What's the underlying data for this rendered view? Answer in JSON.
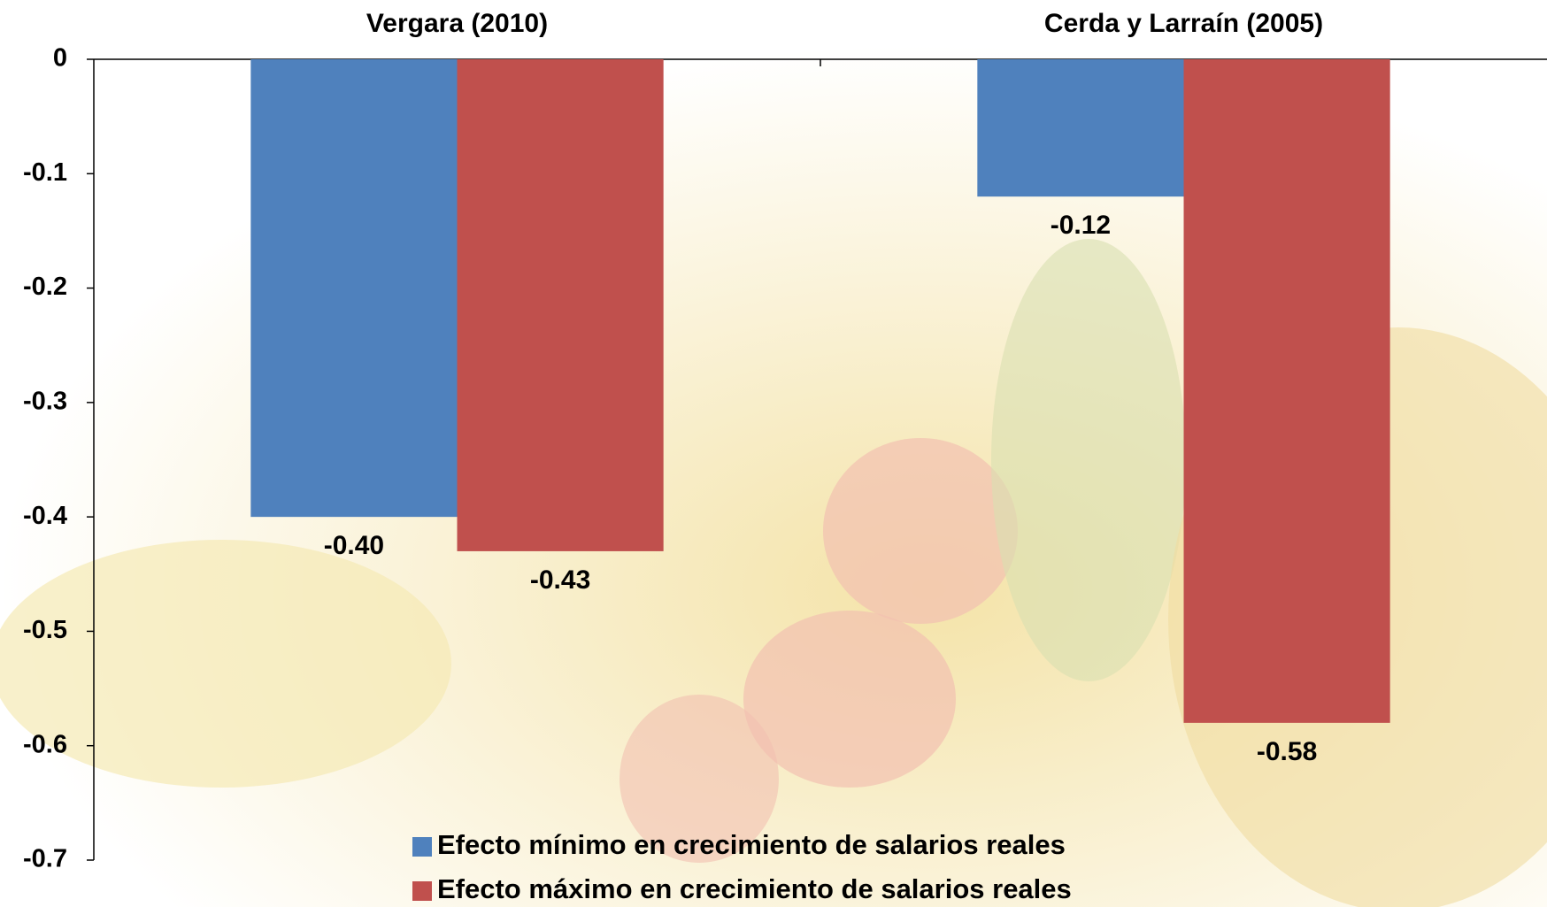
{
  "chart_data": {
    "type": "bar",
    "categories": [
      "Vergara (2010)",
      "Cerda y Larraín (2005)"
    ],
    "series": [
      {
        "name": "Efecto mínimo en crecimiento de salarios reales",
        "color": "#4f81bd",
        "values": [
          -0.4,
          -0.12
        ],
        "value_labels": [
          "-0.40",
          "-0.12"
        ]
      },
      {
        "name": "Efecto máximo en crecimiento de salarios reales",
        "color": "#c0504d",
        "values": [
          -0.43,
          -0.58
        ],
        "value_labels": [
          "-0.43",
          "-0.58"
        ]
      }
    ],
    "ylim": [
      -0.7,
      0
    ],
    "yticks": [
      0,
      -0.1,
      -0.2,
      -0.3,
      -0.4,
      -0.5,
      -0.6,
      -0.7
    ],
    "grid": false
  }
}
